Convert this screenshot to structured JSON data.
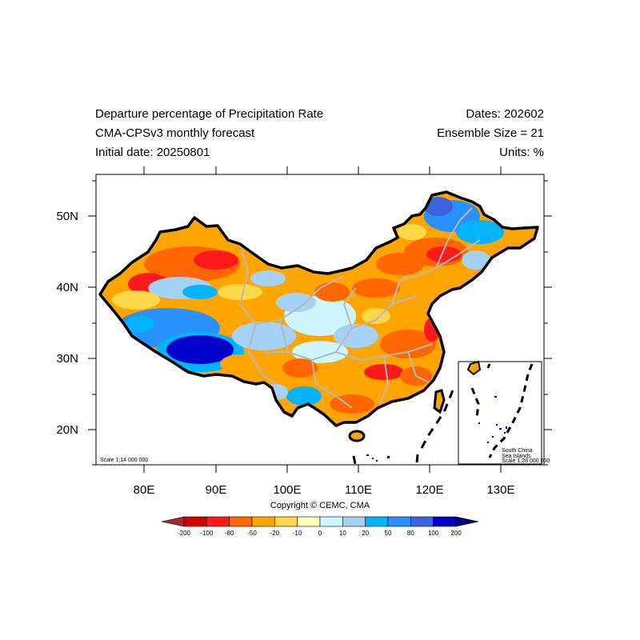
{
  "header": {
    "title": "Departure percentage of Precipitation Rate",
    "model": "CMA-CPSv3 monthly forecast",
    "initial_date": "Initial date: 20250801",
    "dates": "Dates: 202602",
    "ensemble": "Ensemble Size = 21",
    "units": "Units: %"
  },
  "map": {
    "lon_ticks": [
      "80E",
      "90E",
      "100E",
      "110E",
      "120E",
      "130E"
    ],
    "lat_ticks": [
      "50N",
      "40N",
      "30N",
      "20N"
    ],
    "scale_main": "Scale 1:14 000 000",
    "inset_line1": "South China",
    "inset_line2": "Sea Islands",
    "inset_scale": "Scale 1:28 000 000"
  },
  "copyright": "Copyright © CEMC, CMA",
  "colorbar": {
    "labels": [
      "-200",
      "-100",
      "-80",
      "-50",
      "-20",
      "-10",
      "0",
      "10",
      "20",
      "50",
      "80",
      "100",
      "200"
    ],
    "colors": [
      "#a52a2a",
      "#d40000",
      "#ff1a1a",
      "#ff6600",
      "#ffa500",
      "#ffd84a",
      "#ffffc0",
      "#cdf6ff",
      "#a6d2f7",
      "#00b4ff",
      "#2890ff",
      "#3d62e0",
      "#0000c8",
      "#00008b"
    ]
  }
}
